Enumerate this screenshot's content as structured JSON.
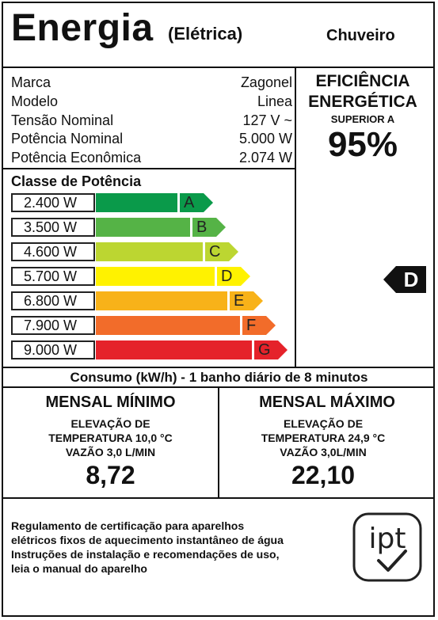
{
  "header": {
    "title": "Energia",
    "subtitle": "(Elétrica)",
    "product": "Chuveiro"
  },
  "specs": [
    {
      "label": "Marca",
      "value": "Zagonel"
    },
    {
      "label": "Modelo",
      "value": "Linea"
    },
    {
      "label": "Tensão Nominal",
      "value": "127 V ~"
    },
    {
      "label": "Potência Nominal",
      "value": "5.000 W"
    },
    {
      "label": "Potência Econômica",
      "value": "2.074 W"
    }
  ],
  "efficiency": {
    "line1": "EFICIÊNCIA",
    "line2": "ENERGÉTICA",
    "level_label": "SUPERIOR A",
    "percent": "95%"
  },
  "classes": {
    "title": "Classe de Potência",
    "rows": [
      {
        "power": "2.400 W",
        "letter": "A",
        "color": "#0a9a4a"
      },
      {
        "power": "3.500 W",
        "letter": "B",
        "color": "#55b346"
      },
      {
        "power": "4.600 W",
        "letter": "C",
        "color": "#bcd631"
      },
      {
        "power": "5.700 W",
        "letter": "D",
        "color": "#fff200"
      },
      {
        "power": "6.800 W",
        "letter": "E",
        "color": "#f8b219"
      },
      {
        "power": "7.900 W",
        "letter": "F",
        "color": "#f26c2a"
      },
      {
        "power": "9.000 W",
        "letter": "G",
        "color": "#e5222a"
      }
    ],
    "indicator": "D"
  },
  "consumo": {
    "title": "Consumo (kW/h) - 1 banho diário de 8 minutos",
    "min": {
      "heading": "MENSAL MÍNIMO",
      "line1": "ELEVAÇÃO DE",
      "line2": "TEMPERATURA 10,0 °C",
      "line3": "VAZÃO 3,0 L/MIN",
      "value": "8,72"
    },
    "max": {
      "heading": "MENSAL MÁXIMO",
      "line1": "ELEVAÇÃO DE",
      "line2": "TEMPERATURA 24,9 °C",
      "line3": "VAZÃO 3,0L/MIN",
      "value": "22,10"
    }
  },
  "footer": {
    "line1": "Regulamento de certificação para aparelhos",
    "line2": "elétricos fixos de aquecimento instantâneo de água",
    "line3": "Instruções de instalação e recomendações de uso,",
    "line4": "leia o manual do aparelho",
    "logo_text": "ipt"
  }
}
